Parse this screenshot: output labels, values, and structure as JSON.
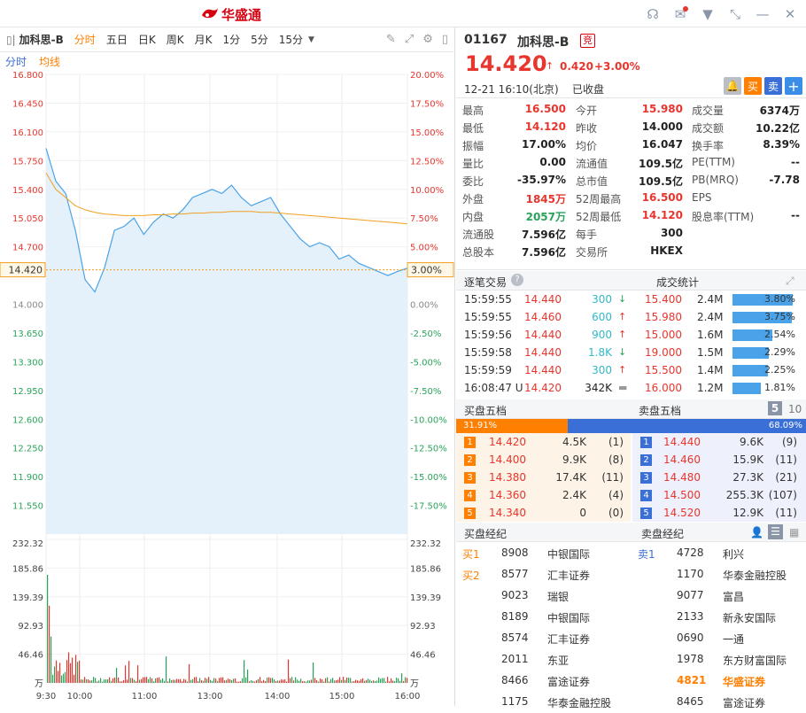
{
  "app": {
    "title": "华盛通"
  },
  "toolbar": {
    "name": "加科思-B",
    "tabs": [
      "分时",
      "五日",
      "日K",
      "周K",
      "月K",
      "1分",
      "5分",
      "15分"
    ],
    "active": "分时"
  },
  "subtabs": [
    "分时",
    "均线"
  ],
  "chart": {
    "price_ticks": [
      "16.800",
      "16.450",
      "16.100",
      "15.750",
      "15.400",
      "15.050",
      "14.700",
      "14.420",
      "14.000",
      "13.650",
      "13.300",
      "12.950",
      "12.600",
      "12.250",
      "11.900",
      "11.550"
    ],
    "pct_ticks": [
      "20.00%",
      "17.50%",
      "15.00%",
      "12.50%",
      "10.00%",
      "7.50%",
      "5.00%",
      "3.00%",
      "0.00%",
      "-2.50%",
      "-5.00%",
      "-7.50%",
      "-10.00%",
      "-12.50%",
      "-15.00%",
      "-17.50%"
    ],
    "vol_ticks": [
      "232.32",
      "185.86",
      "139.39",
      "92.93",
      "46.46",
      "万"
    ],
    "time_ticks": [
      "9:30",
      "10:00",
      "11:00",
      "14:00",
      "15:00",
      "16:00",
      "13:00"
    ],
    "current_price": "14.420",
    "current_pct": "3.00%"
  },
  "chart_data": {
    "type": "line",
    "x": [
      "9:30",
      "9:35",
      "9:40",
      "9:45",
      "9:50",
      "9:55",
      "10:00",
      "10:10",
      "10:20",
      "10:30",
      "10:40",
      "10:50",
      "11:00",
      "11:10",
      "11:20",
      "11:30",
      "11:40",
      "11:50",
      "12:00",
      "13:00",
      "13:10",
      "13:20",
      "13:30",
      "13:40",
      "13:50",
      "14:00",
      "14:10",
      "14:20",
      "14:30",
      "14:40",
      "14:50",
      "15:00",
      "15:10",
      "15:20",
      "15:30",
      "15:40",
      "15:50",
      "16:00"
    ],
    "series": [
      {
        "name": "分时",
        "values": [
          15.9,
          15.5,
          15.35,
          14.9,
          14.3,
          14.15,
          14.45,
          14.9,
          14.95,
          15.05,
          14.85,
          15.0,
          15.1,
          15.05,
          15.15,
          15.3,
          15.35,
          15.4,
          15.35,
          15.45,
          15.3,
          15.2,
          15.25,
          15.3,
          15.1,
          14.95,
          14.8,
          14.7,
          14.75,
          14.7,
          14.55,
          14.6,
          14.5,
          14.45,
          14.4,
          14.35,
          14.4,
          14.44
        ]
      },
      {
        "name": "均线",
        "values": [
          15.6,
          15.4,
          15.3,
          15.2,
          15.15,
          15.12,
          15.1,
          15.09,
          15.08,
          15.08,
          15.08,
          15.09,
          15.09,
          15.1,
          15.1,
          15.11,
          15.11,
          15.12,
          15.12,
          15.13,
          15.13,
          15.13,
          15.12,
          15.12,
          15.11,
          15.1,
          15.09,
          15.08,
          15.07,
          15.06,
          15.05,
          15.04,
          15.03,
          15.02,
          15.01,
          15.0,
          14.99,
          14.98
        ]
      }
    ],
    "ylim": [
      11.2,
      16.8
    ],
    "volume_lim": [
      0,
      232.32
    ]
  },
  "quote": {
    "code": "01167",
    "name": "加科思-B",
    "badge": "竞",
    "price": "14.420",
    "arrow": "↑",
    "change": "0.420",
    "change_pct": "+3.00%",
    "datetime": "12-21 16:10(北京)",
    "status": "已收盘",
    "buy": "买",
    "sell": "卖",
    "plus": "+"
  },
  "stats": [
    [
      [
        "最高",
        "16.500",
        "r"
      ],
      [
        "今开",
        "15.980",
        "r"
      ],
      [
        "成交量",
        "6374万",
        "d"
      ]
    ],
    [
      [
        "最低",
        "14.120",
        "r"
      ],
      [
        "昨收",
        "14.000",
        "d"
      ],
      [
        "成交额",
        "10.22亿",
        "d"
      ]
    ],
    [
      [
        "振幅",
        "17.00%",
        "d"
      ],
      [
        "均价",
        "16.047",
        "d"
      ],
      [
        "换手率",
        "8.39%",
        "d"
      ]
    ],
    [
      [
        "量比",
        "0.00",
        "d"
      ],
      [
        "流通值",
        "109.5亿",
        "d"
      ],
      [
        "PE(TTM)",
        "--",
        "d"
      ]
    ],
    [
      [
        "委比",
        "-35.97%",
        "d"
      ],
      [
        "总市值",
        "109.5亿",
        "d"
      ],
      [
        "PB(MRQ)",
        "-7.78",
        "d"
      ]
    ],
    [
      [
        "外盘",
        "1845万",
        "r"
      ],
      [
        "52周最高",
        "16.500",
        "r"
      ],
      [
        "EPS",
        "",
        "d"
      ]
    ],
    [
      [
        "内盘",
        "2057万",
        "g"
      ],
      [
        "52周最低",
        "14.120",
        "r"
      ],
      [
        "股息率(TTM)",
        "--",
        "d"
      ]
    ],
    [
      [
        "流通股",
        "7.596亿",
        "d"
      ],
      [
        "每手",
        "300",
        "d"
      ],
      [
        "",
        "",
        " "
      ]
    ],
    [
      [
        "总股本",
        "7.596亿",
        "d"
      ],
      [
        "交易所",
        "HKEX",
        "d"
      ],
      [
        "",
        "",
        " "
      ]
    ]
  ],
  "ticks_section": {
    "title": "逐笔交易",
    "stats_title": "成交统计",
    "rows": [
      [
        "15:59:55",
        "14.440",
        "300",
        "down",
        "15.400",
        "2.4M",
        "3.80%"
      ],
      [
        "15:59:55",
        "14.460",
        "600",
        "up",
        "15.980",
        "2.4M",
        "3.75%"
      ],
      [
        "15:59:56",
        "14.440",
        "900",
        "up",
        "15.000",
        "1.6M",
        "2.54%"
      ],
      [
        "15:59:58",
        "14.440",
        "1.8K",
        "down",
        "19.000",
        "1.5M",
        "2.29%"
      ],
      [
        "15:59:59",
        "14.440",
        "300",
        "up",
        "15.500",
        "1.4M",
        "2.25%"
      ],
      [
        "16:08:47 U",
        "14.420",
        "342K",
        "flat",
        "16.000",
        "1.2M",
        "1.81%"
      ]
    ]
  },
  "orderbook": {
    "bid_title": "买盘五档",
    "ask_title": "卖盘五档",
    "level5": "5",
    "level10": "10",
    "bid_ratio": "31.91%",
    "ask_ratio": "68.09%",
    "bids": [
      [
        "1",
        "14.420",
        "4.5K",
        "(1)"
      ],
      [
        "2",
        "14.400",
        "9.9K",
        "(8)"
      ],
      [
        "3",
        "14.380",
        "17.4K",
        "(11)"
      ],
      [
        "4",
        "14.360",
        "2.4K",
        "(4)"
      ],
      [
        "5",
        "14.340",
        "0",
        "(0)"
      ]
    ],
    "asks": [
      [
        "1",
        "14.440",
        "9.6K",
        "(9)"
      ],
      [
        "2",
        "14.460",
        "15.9K",
        "(11)"
      ],
      [
        "3",
        "14.480",
        "27.3K",
        "(21)"
      ],
      [
        "4",
        "14.500",
        "255.3K",
        "(107)"
      ],
      [
        "5",
        "14.520",
        "12.9K",
        "(11)"
      ]
    ]
  },
  "brokers": {
    "bid_title": "买盘经纪",
    "ask_title": "卖盘经纪",
    "bids": [
      [
        "买1",
        "8908",
        "中银国际"
      ],
      [
        "买2",
        "8577",
        "汇丰证券"
      ],
      [
        "",
        "9023",
        "瑞银"
      ],
      [
        "",
        "8189",
        "中银国际"
      ],
      [
        "",
        "8574",
        "汇丰证券"
      ],
      [
        "",
        "2011",
        "东亚"
      ],
      [
        "",
        "8466",
        "富途证券"
      ],
      [
        "",
        "1175",
        "华泰金融控股"
      ]
    ],
    "asks": [
      [
        "卖1",
        "4728",
        "利兴"
      ],
      [
        "",
        "1170",
        "华泰金融控股"
      ],
      [
        "",
        "9077",
        "富昌"
      ],
      [
        "",
        "2133",
        "新永安国际"
      ],
      [
        "",
        "0690",
        "一通"
      ],
      [
        "",
        "1978",
        "东方财富国际"
      ],
      [
        "",
        "4821",
        "华盛证券"
      ],
      [
        "",
        "8465",
        "富途证券"
      ]
    ]
  },
  "colors": {
    "up": "#e8352e",
    "down": "#2aa35a",
    "accent": "#ff7f00",
    "blue": "#3b6fd8"
  }
}
